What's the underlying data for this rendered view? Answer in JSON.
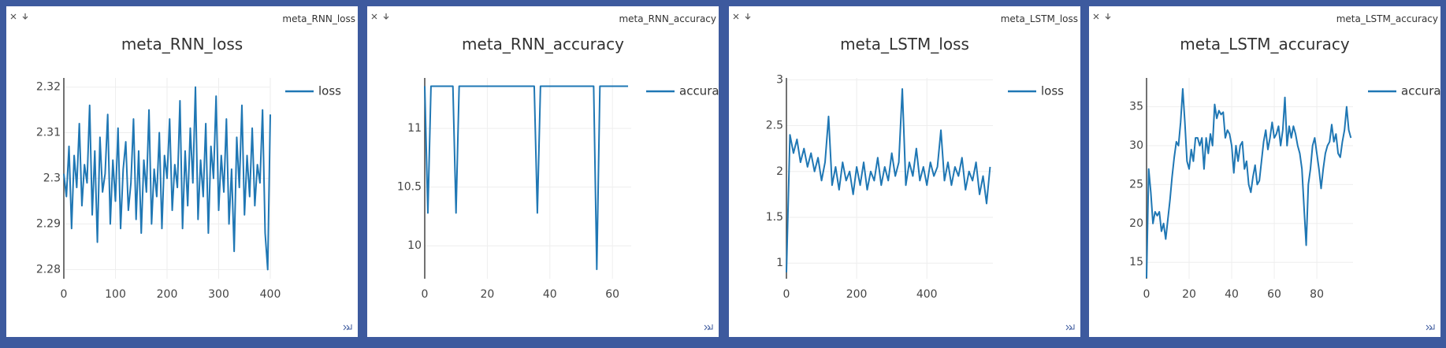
{
  "chart_data": [
    {
      "type": "line",
      "window_title": "meta_RNN_loss",
      "title": "meta_RNN_loss",
      "x": [
        0,
        5,
        10,
        15,
        20,
        25,
        30,
        35,
        40,
        45,
        50,
        55,
        60,
        65,
        70,
        75,
        80,
        85,
        90,
        95,
        100,
        105,
        110,
        115,
        120,
        125,
        130,
        135,
        140,
        145,
        150,
        155,
        160,
        165,
        170,
        175,
        180,
        185,
        190,
        195,
        200,
        205,
        210,
        215,
        220,
        225,
        230,
        235,
        240,
        245,
        250,
        255,
        260,
        265,
        270,
        275,
        280,
        285,
        290,
        295,
        300,
        305,
        310,
        315,
        320,
        325,
        330,
        335,
        340,
        345,
        350,
        355,
        360,
        365,
        370,
        375,
        380,
        385,
        390,
        395,
        400
      ],
      "series": [
        {
          "name": "loss",
          "color": "#1f77b4",
          "values": [
            2.301,
            2.296,
            2.307,
            2.289,
            2.305,
            2.298,
            2.312,
            2.294,
            2.303,
            2.299,
            2.316,
            2.292,
            2.306,
            2.286,
            2.309,
            2.297,
            2.301,
            2.314,
            2.29,
            2.304,
            2.295,
            2.311,
            2.289,
            2.302,
            2.308,
            2.293,
            2.299,
            2.313,
            2.291,
            2.306,
            2.288,
            2.304,
            2.297,
            2.315,
            2.29,
            2.302,
            2.296,
            2.31,
            2.289,
            2.305,
            2.3,
            2.313,
            2.293,
            2.303,
            2.298,
            2.317,
            2.289,
            2.306,
            2.294,
            2.311,
            2.299,
            2.32,
            2.291,
            2.304,
            2.296,
            2.312,
            2.288,
            2.307,
            2.3,
            2.318,
            2.293,
            2.305,
            2.297,
            2.313,
            2.29,
            2.302,
            2.284,
            2.309,
            2.298,
            2.316,
            2.292,
            2.305,
            2.296,
            2.311,
            2.294,
            2.303,
            2.299,
            2.315,
            2.288,
            2.28,
            2.314
          ]
        }
      ],
      "xlim": [
        0,
        400
      ],
      "xticks": [
        0,
        100,
        200,
        300,
        400
      ],
      "ylim": [
        2.278,
        2.322
      ],
      "yticks": [
        2.28,
        2.29,
        2.3,
        2.31,
        2.32
      ],
      "grid": true,
      "legend": "right"
    },
    {
      "type": "line",
      "window_title": "meta_RNN_accuracy",
      "title": "meta_RNN_accuracy",
      "x": [
        0,
        1,
        2,
        3,
        4,
        5,
        6,
        7,
        8,
        9,
        10,
        11,
        12,
        13,
        14,
        15,
        16,
        17,
        18,
        19,
        20,
        21,
        22,
        23,
        24,
        25,
        26,
        27,
        28,
        29,
        30,
        31,
        32,
        33,
        34,
        35,
        36,
        37,
        38,
        39,
        40,
        41,
        42,
        43,
        44,
        45,
        46,
        47,
        48,
        49,
        50,
        51,
        52,
        53,
        54,
        55,
        56,
        57,
        58,
        59,
        60,
        61,
        62,
        63,
        64,
        65
      ],
      "series": [
        {
          "name": "accuracy",
          "color": "#1f77b4",
          "values": [
            11.36,
            10.28,
            11.36,
            11.36,
            11.36,
            11.36,
            11.36,
            11.36,
            11.36,
            11.36,
            10.28,
            11.36,
            11.36,
            11.36,
            11.36,
            11.36,
            11.36,
            11.36,
            11.36,
            11.36,
            11.36,
            11.36,
            11.36,
            11.36,
            11.36,
            11.36,
            11.36,
            11.36,
            11.36,
            11.36,
            11.36,
            11.36,
            11.36,
            11.36,
            11.36,
            11.36,
            10.28,
            11.36,
            11.36,
            11.36,
            11.36,
            11.36,
            11.36,
            11.36,
            11.36,
            11.36,
            11.36,
            11.36,
            11.36,
            11.36,
            11.36,
            11.36,
            11.36,
            11.36,
            11.36,
            9.8,
            11.36,
            11.36,
            11.36,
            11.36,
            11.36,
            11.36,
            11.36,
            11.36,
            11.36,
            11.36
          ]
        }
      ],
      "xlim": [
        0,
        66
      ],
      "xticks": [
        0,
        20,
        40,
        60
      ],
      "ylim": [
        9.72,
        11.43
      ],
      "yticks": [
        10,
        10.5,
        11
      ],
      "grid": true,
      "legend": "right"
    },
    {
      "type": "line",
      "window_title": "meta_LSTM_loss",
      "title": "meta_LSTM_loss",
      "x": [
        0,
        10,
        20,
        30,
        40,
        50,
        60,
        70,
        80,
        90,
        100,
        110,
        120,
        130,
        140,
        150,
        160,
        170,
        180,
        190,
        200,
        210,
        220,
        230,
        240,
        250,
        260,
        270,
        280,
        290,
        300,
        310,
        320,
        330,
        340,
        350,
        360,
        370,
        380,
        390,
        400,
        410,
        420,
        430,
        440,
        450,
        460,
        470,
        480,
        490,
        500,
        510,
        520,
        530,
        540,
        550,
        560,
        570,
        580
      ],
      "series": [
        {
          "name": "loss",
          "color": "#1f77b4",
          "values": [
            0.9,
            2.4,
            2.2,
            2.35,
            2.1,
            2.25,
            2.05,
            2.2,
            2.0,
            2.15,
            1.9,
            2.1,
            2.6,
            1.85,
            2.05,
            1.8,
            2.1,
            1.9,
            2.0,
            1.75,
            2.05,
            1.85,
            2.1,
            1.8,
            2.0,
            1.9,
            2.15,
            1.85,
            2.05,
            1.9,
            2.2,
            1.95,
            2.1,
            2.9,
            1.85,
            2.1,
            1.95,
            2.25,
            1.9,
            2.05,
            1.85,
            2.1,
            1.95,
            2.05,
            2.45,
            1.9,
            2.1,
            1.85,
            2.05,
            1.95,
            2.15,
            1.8,
            2.0,
            1.9,
            2.1,
            1.75,
            1.95,
            1.65,
            2.05
          ]
        }
      ],
      "xlim": [
        0,
        588
      ],
      "xticks": [
        0,
        200,
        400
      ],
      "ylim": [
        0.83,
        3.02
      ],
      "yticks": [
        1,
        1.5,
        2,
        2.5,
        3
      ],
      "grid": true,
      "legend": "right"
    },
    {
      "type": "line",
      "window_title": "meta_LSTM_accuracy",
      "title": "meta_LSTM_accuracy",
      "x": [
        0,
        1,
        2,
        3,
        4,
        5,
        6,
        7,
        8,
        9,
        10,
        11,
        12,
        13,
        14,
        15,
        16,
        17,
        18,
        19,
        20,
        21,
        22,
        23,
        24,
        25,
        26,
        27,
        28,
        29,
        30,
        31,
        32,
        33,
        34,
        35,
        36,
        37,
        38,
        39,
        40,
        41,
        42,
        43,
        44,
        45,
        46,
        47,
        48,
        49,
        50,
        51,
        52,
        53,
        54,
        55,
        56,
        57,
        58,
        59,
        60,
        61,
        62,
        63,
        64,
        65,
        66,
        67,
        68,
        69,
        70,
        71,
        72,
        73,
        74,
        75,
        76,
        77,
        78,
        79,
        80,
        81,
        82,
        83,
        84,
        85,
        86,
        87,
        88,
        89,
        90,
        91,
        92,
        93,
        94,
        95,
        96
      ],
      "series": [
        {
          "name": "accuracy",
          "color": "#1f77b4",
          "values": [
            13,
            27,
            24,
            20,
            21.5,
            21,
            21.5,
            19,
            20,
            18,
            20.5,
            23,
            26,
            28.5,
            30.5,
            30,
            33,
            37.3,
            33,
            28,
            27,
            29.5,
            28,
            31,
            31,
            30,
            31,
            27,
            31,
            29,
            31.5,
            30,
            35.3,
            33.5,
            34.5,
            34,
            34.3,
            31,
            32,
            31.5,
            30,
            26.5,
            30,
            28,
            30,
            30.5,
            27,
            28,
            25,
            24,
            26,
            27.5,
            25,
            25.5,
            28,
            30.5,
            32,
            29.5,
            31,
            33,
            31,
            31.5,
            32.5,
            30,
            32,
            36.2,
            30,
            32.5,
            31,
            32.5,
            31.5,
            30,
            29,
            27,
            22,
            17.2,
            25,
            27,
            30,
            31,
            29,
            27,
            24.5,
            27,
            29,
            30,
            30.5,
            32.7,
            30.5,
            31.5,
            29,
            28.5,
            30.5,
            32,
            35,
            32,
            31
          ]
        }
      ],
      "xlim": [
        0,
        97
      ],
      "xticks": [
        0,
        20,
        40,
        60,
        80
      ],
      "ylim": [
        12.9,
        38.7
      ],
      "yticks": [
        15,
        20,
        25,
        30,
        35
      ],
      "grid": true,
      "legend": "right"
    }
  ]
}
